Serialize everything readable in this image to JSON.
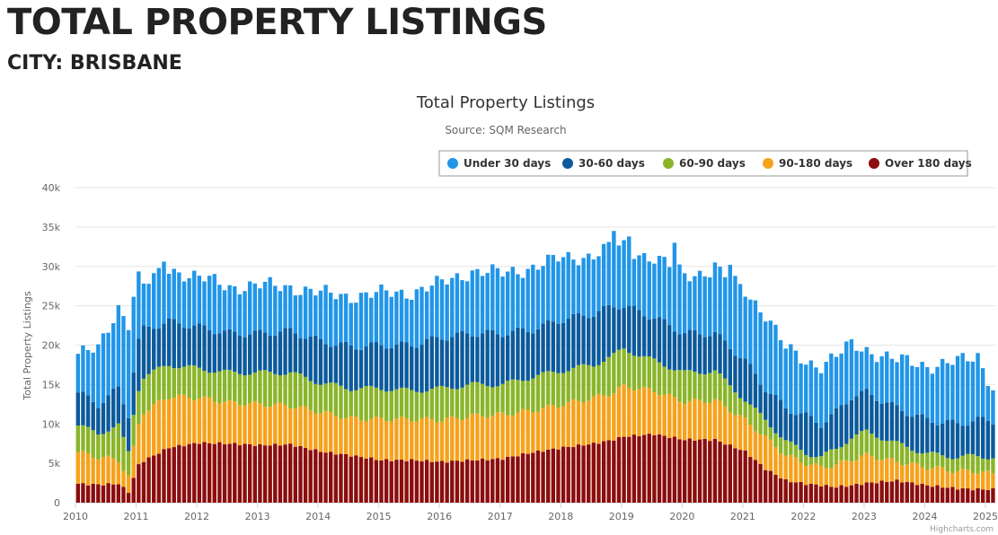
{
  "page": {
    "title": "TOTAL PROPERTY LISTINGS",
    "subtitle": "CITY: BRISBANE"
  },
  "chart_data": {
    "type": "bar",
    "stacked": true,
    "title": "Total Property Listings",
    "subtitle": "Source: SQM Research",
    "ylabel": "Total Property Listings",
    "xlabel": "",
    "credits": "Highcharts.com",
    "legend_position": "top-right",
    "grid": true,
    "ylim": [
      0,
      40000
    ],
    "y_ticks": [
      0,
      5000,
      10000,
      15000,
      20000,
      25000,
      30000,
      35000,
      40000
    ],
    "y_tick_labels": [
      "0",
      "5k",
      "10k",
      "15k",
      "20k",
      "25k",
      "30k",
      "35k",
      "40k"
    ],
    "xlim": [
      "2010-01",
      "2025-02"
    ],
    "x_ticks": [
      "2010",
      "2011",
      "2012",
      "2013",
      "2014",
      "2015",
      "2016",
      "2017",
      "2018",
      "2019",
      "2020",
      "2021",
      "2022",
      "2023",
      "2024",
      "2025"
    ],
    "series_colors": [
      "#2196e8",
      "#0b5a9c",
      "#8ab52a",
      "#f6a21c",
      "#8b0d0d"
    ],
    "legend_order": [
      "Under 30 days",
      "30-60 days",
      "60-90 days",
      "90-180 days",
      "Over 180 days"
    ],
    "anchors": [
      {
        "t": 2010.0,
        "total": 18900,
        "o": 2400,
        "a": 6400,
        "b": 9800,
        "c": 14000
      },
      {
        "t": 2010.33,
        "total": 19300,
        "o": 2300,
        "a": 5800,
        "b": 8800,
        "c": 12500
      },
      {
        "t": 2010.67,
        "total": 25000,
        "o": 2400,
        "a": 5400,
        "b": 9800,
        "c": 14500
      },
      {
        "t": 2010.83,
        "total": 22800,
        "o": 1300,
        "a": 3200,
        "b": 6200,
        "c": 11000
      },
      {
        "t": 2010.92,
        "total": 26500,
        "o": 3200,
        "a": 7000,
        "b": 11500,
        "c": 17000
      },
      {
        "t": 2011.0,
        "total": 28500,
        "o": 4800,
        "a": 10000,
        "b": 14500,
        "c": 20500
      },
      {
        "t": 2011.08,
        "total": 27500,
        "o": 5300,
        "a": 11500,
        "b": 16000,
        "c": 22000
      },
      {
        "t": 2011.5,
        "total": 29800,
        "o": 7000,
        "a": 13500,
        "b": 17500,
        "c": 23000
      },
      {
        "t": 2012.0,
        "total": 28500,
        "o": 7600,
        "a": 13300,
        "b": 17000,
        "c": 22300
      },
      {
        "t": 2012.5,
        "total": 27500,
        "o": 7500,
        "a": 12700,
        "b": 16500,
        "c": 21500
      },
      {
        "t": 2013.0,
        "total": 27500,
        "o": 7300,
        "a": 12500,
        "b": 16500,
        "c": 21500
      },
      {
        "t": 2013.5,
        "total": 27500,
        "o": 7400,
        "a": 12300,
        "b": 16500,
        "c": 21800
      },
      {
        "t": 2014.0,
        "total": 26500,
        "o": 6500,
        "a": 11500,
        "b": 15200,
        "c": 20500
      },
      {
        "t": 2014.5,
        "total": 26300,
        "o": 6000,
        "a": 10700,
        "b": 14500,
        "c": 19800
      },
      {
        "t": 2015.0,
        "total": 26500,
        "o": 5400,
        "a": 10600,
        "b": 14500,
        "c": 20000
      },
      {
        "t": 2015.5,
        "total": 26800,
        "o": 5400,
        "a": 10600,
        "b": 14200,
        "c": 20000
      },
      {
        "t": 2016.0,
        "total": 27800,
        "o": 5200,
        "a": 10500,
        "b": 14500,
        "c": 21000
      },
      {
        "t": 2016.5,
        "total": 29500,
        "o": 5400,
        "a": 11000,
        "b": 15000,
        "c": 21500
      },
      {
        "t": 2017.0,
        "total": 29000,
        "o": 5600,
        "a": 11200,
        "b": 15000,
        "c": 21500
      },
      {
        "t": 2017.5,
        "total": 30000,
        "o": 6400,
        "a": 11700,
        "b": 16000,
        "c": 22000
      },
      {
        "t": 2018.0,
        "total": 31000,
        "o": 7000,
        "a": 12500,
        "b": 16800,
        "c": 23300
      },
      {
        "t": 2018.5,
        "total": 31500,
        "o": 7500,
        "a": 13300,
        "b": 17500,
        "c": 24000
      },
      {
        "t": 2018.83,
        "total": 32500,
        "o": 8000,
        "a": 14000,
        "b": 18700,
        "c": 25000
      },
      {
        "t": 2019.0,
        "total": 32500,
        "o": 8400,
        "a": 14800,
        "b": 19500,
        "c": 25000
      },
      {
        "t": 2019.5,
        "total": 31000,
        "o": 8700,
        "a": 14200,
        "b": 18000,
        "c": 23500
      },
      {
        "t": 2020.0,
        "total": 29000,
        "o": 8000,
        "a": 12800,
        "b": 16500,
        "c": 21500
      },
      {
        "t": 2020.5,
        "total": 29500,
        "o": 8000,
        "a": 13000,
        "b": 16700,
        "c": 21500
      },
      {
        "t": 2021.0,
        "total": 27000,
        "o": 6500,
        "a": 10500,
        "b": 13000,
        "c": 18000
      },
      {
        "t": 2021.33,
        "total": 24000,
        "o": 4300,
        "a": 8300,
        "b": 10500,
        "c": 14500
      },
      {
        "t": 2021.67,
        "total": 19500,
        "o": 2800,
        "a": 6000,
        "b": 7800,
        "c": 12000
      },
      {
        "t": 2022.0,
        "total": 18000,
        "o": 2400,
        "a": 5000,
        "b": 6300,
        "c": 11000
      },
      {
        "t": 2022.25,
        "total": 17500,
        "o": 2200,
        "a": 4500,
        "b": 5800,
        "c": 10000
      },
      {
        "t": 2022.5,
        "total": 18500,
        "o": 2000,
        "a": 4800,
        "b": 6800,
        "c": 11500
      },
      {
        "t": 2022.75,
        "total": 20000,
        "o": 2200,
        "a": 5500,
        "b": 8300,
        "c": 13500
      },
      {
        "t": 2023.0,
        "total": 19500,
        "o": 2500,
        "a": 6000,
        "b": 9000,
        "c": 14000
      },
      {
        "t": 2023.5,
        "total": 18000,
        "o": 2800,
        "a": 5200,
        "b": 7500,
        "c": 12000
      },
      {
        "t": 2024.0,
        "total": 17500,
        "o": 2200,
        "a": 4500,
        "b": 6200,
        "c": 10500
      },
      {
        "t": 2024.5,
        "total": 17800,
        "o": 1800,
        "a": 4000,
        "b": 5800,
        "c": 10000
      },
      {
        "t": 2024.83,
        "total": 18500,
        "o": 1700,
        "a": 4000,
        "b": 5900,
        "c": 10500
      },
      {
        "t": 2025.08,
        "total": 14800,
        "o": 1700,
        "a": 3600,
        "b": 5800,
        "c": 10400
      }
    ],
    "highlights": [
      {
        "month": "2018-11",
        "total": 34500
      },
      {
        "month": "2019-02",
        "total": 33800
      },
      {
        "month": "2019-11",
        "total": 33000
      },
      {
        "month": "2020-07",
        "total": 30500
      },
      {
        "month": "2020-10",
        "total": 30200
      },
      {
        "month": "2011-06",
        "total": 30600
      },
      {
        "month": "2024-11",
        "total": 19000
      }
    ]
  }
}
